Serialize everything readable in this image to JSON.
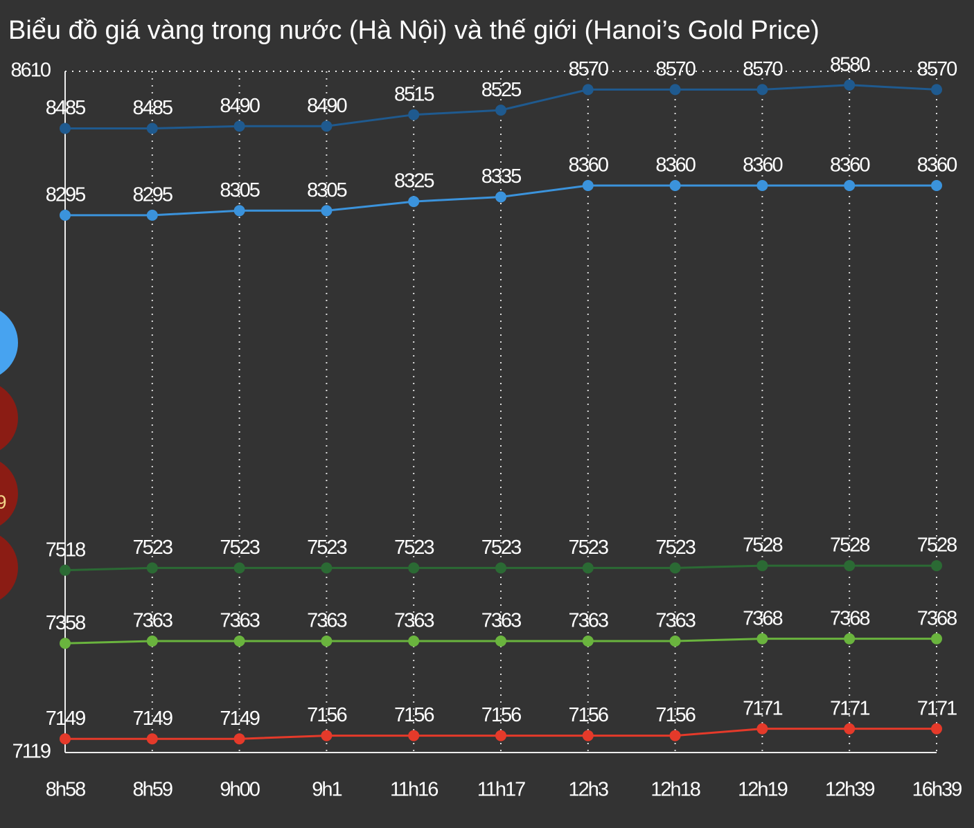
{
  "chart_data": {
    "type": "line",
    "title": "Biểu đồ giá vàng trong nước (Hà Nội) và thế giới (Hanoi’s Gold Price)",
    "categories": [
      "8h58",
      "8h59",
      "9h00",
      "9h1",
      "11h16",
      "11h17",
      "12h3",
      "12h18",
      "12h19",
      "12h39",
      "16h39"
    ],
    "series": [
      {
        "color": "#1f5a8f",
        "values": [
          8485,
          8485,
          8490,
          8490,
          8515,
          8525,
          8570,
          8570,
          8570,
          8580,
          8570
        ]
      },
      {
        "color": "#3b93dc",
        "values": [
          8295,
          8295,
          8305,
          8305,
          8325,
          8335,
          8360,
          8360,
          8360,
          8360,
          8360
        ]
      },
      {
        "color": "#2b6a34",
        "values": [
          7518,
          7523,
          7523,
          7523,
          7523,
          7523,
          7523,
          7523,
          7528,
          7528,
          7528
        ]
      },
      {
        "color": "#6ab43e",
        "values": [
          7358,
          7363,
          7363,
          7363,
          7363,
          7363,
          7363,
          7363,
          7368,
          7368,
          7368
        ]
      },
      {
        "color": "#e53a2a",
        "values": [
          7149,
          7149,
          7149,
          7156,
          7156,
          7156,
          7156,
          7156,
          7171,
          7171,
          7171
        ]
      }
    ],
    "ylim": [
      7119,
      8610
    ],
    "yticks": [
      7119,
      8610
    ],
    "grid": true
  },
  "badge_text": "9"
}
